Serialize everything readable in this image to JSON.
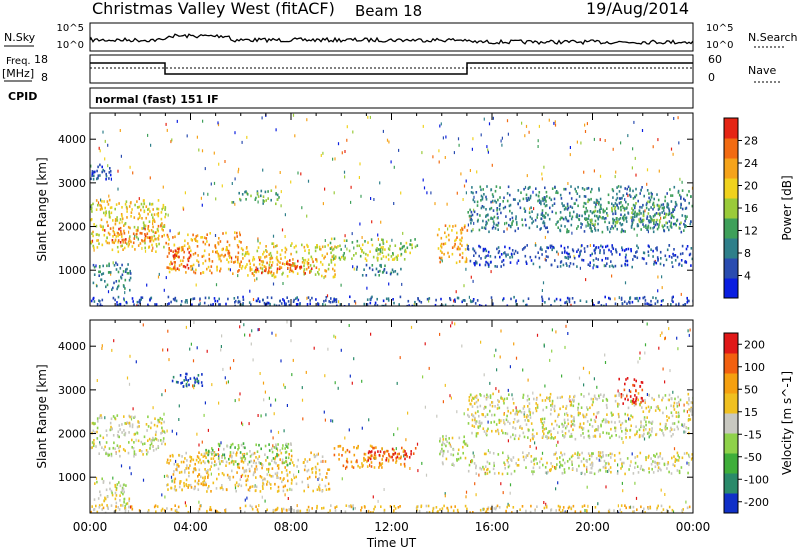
{
  "header": {
    "title": "Christmas Valley West (fitACF)",
    "beam": "Beam 18",
    "date": "19/Aug/2014"
  },
  "strip": {
    "nsky_label": "N.Sky",
    "nsky_ticks": [
      "10^5",
      "10^0"
    ],
    "nsearch_label": "N.Search",
    "nsearch_ticks": [
      "10^5",
      "10^0"
    ],
    "freq_label": "Freq.",
    "freq_unit": "[MHz]",
    "freq_ticks": [
      "18",
      "8"
    ],
    "nave_label": "Nave",
    "nave_ticks": [
      "60",
      "0"
    ],
    "cpid_label": "CPID",
    "cpid_value": "normal (fast) 151 IF"
  },
  "chart_data": [
    {
      "type": "heatmap",
      "title": "",
      "ylabel": "Slant Range [km]",
      "xlabel": "",
      "ylim": [
        180,
        4600
      ],
      "yticks": [
        "1000",
        "2000",
        "3000",
        "4000"
      ],
      "colorbar": {
        "label": "Power [dB]",
        "ticks": [
          "4",
          "8",
          "12",
          "16",
          "20",
          "24",
          "28"
        ],
        "colors": [
          "#0a1ee0",
          "#2a4cb0",
          "#2f7f8a",
          "#3fa05a",
          "#9acb3a",
          "#f0d21e",
          "#f5a31a",
          "#f26b12",
          "#e52515"
        ]
      },
      "regions": [
        {
          "t0": 0.0,
          "t1": 3.0,
          "r0": 1450,
          "r1": 2650,
          "level": 5
        },
        {
          "t0": 0.5,
          "t1": 2.9,
          "r0": 1650,
          "r1": 2050,
          "level": 7
        },
        {
          "t0": 0.1,
          "t1": 1.6,
          "r0": 550,
          "r1": 1200,
          "level": 2
        },
        {
          "t0": 0.0,
          "t1": 0.8,
          "r0": 3100,
          "r1": 3450,
          "level": 1
        },
        {
          "t0": 3.0,
          "t1": 6.0,
          "r0": 950,
          "r1": 1900,
          "level": 6
        },
        {
          "t0": 3.0,
          "t1": 4.0,
          "r0": 1050,
          "r1": 1550,
          "level": 8
        },
        {
          "t0": 6.0,
          "t1": 9.8,
          "r0": 850,
          "r1": 1650,
          "level": 5
        },
        {
          "t0": 6.3,
          "t1": 9.0,
          "r0": 950,
          "r1": 1300,
          "level": 7
        },
        {
          "t0": 5.5,
          "t1": 7.5,
          "r0": 2550,
          "r1": 2850,
          "level": 3
        },
        {
          "t0": 9.5,
          "t1": 13.0,
          "r0": 1250,
          "r1": 1750,
          "level": 4
        },
        {
          "t0": 10.5,
          "t1": 12.5,
          "r0": 900,
          "r1": 1150,
          "level": 2
        },
        {
          "t0": 13.8,
          "t1": 15.0,
          "r0": 1200,
          "r1": 2050,
          "level": 6
        },
        {
          "t0": 15.0,
          "t1": 24.0,
          "r0": 1900,
          "r1": 2950,
          "level": 2
        },
        {
          "t0": 19.5,
          "t1": 23.5,
          "r0": 2000,
          "r1": 2600,
          "level": 3
        },
        {
          "t0": 15.0,
          "t1": 24.0,
          "r0": 1100,
          "r1": 1600,
          "level": 1
        },
        {
          "t0": 0.0,
          "t1": 24.0,
          "r0": 200,
          "r1": 420,
          "level": 1
        }
      ]
    },
    {
      "type": "heatmap",
      "title": "",
      "ylabel": "Slant Range [km]",
      "xlabel": "Time UT",
      "ylim": [
        180,
        4600
      ],
      "yticks": [
        "1000",
        "2000",
        "3000",
        "4000"
      ],
      "xticks": [
        "00:00",
        "04:00",
        "08:00",
        "12:00",
        "16:00",
        "20:00",
        "00:00"
      ],
      "colorbar": {
        "label": "Velocity [m s^-1]",
        "ticks": [
          "200",
          "100",
          "50",
          "15",
          "-15",
          "-50",
          "-100",
          "-200"
        ],
        "colors": [
          "#1030c8",
          "#2a8a6a",
          "#3fae3a",
          "#8fd24a",
          "#c8c8c0",
          "#f0c020",
          "#f5a010",
          "#f26010",
          "#e01818"
        ]
      },
      "regions": [
        {
          "t0": 0.0,
          "t1": 3.0,
          "r0": 1500,
          "r1": 2450,
          "level": 4
        },
        {
          "t0": 0.1,
          "t1": 1.6,
          "r0": 300,
          "r1": 1000,
          "level": 4
        },
        {
          "t0": 3.0,
          "t1": 9.5,
          "r0": 700,
          "r1": 1600,
          "level": 5
        },
        {
          "t0": 4.5,
          "t1": 8.0,
          "r0": 1300,
          "r1": 1800,
          "level": 3
        },
        {
          "t0": 9.5,
          "t1": 12.5,
          "r0": 1250,
          "r1": 1750,
          "level": 6
        },
        {
          "t0": 11.0,
          "t1": 13.0,
          "r0": 1400,
          "r1": 1700,
          "level": 8
        },
        {
          "t0": 13.8,
          "t1": 15.0,
          "r0": 1300,
          "r1": 2000,
          "level": 4
        },
        {
          "t0": 15.0,
          "t1": 24.0,
          "r0": 1900,
          "r1": 2950,
          "level": 4
        },
        {
          "t0": 15.0,
          "t1": 24.0,
          "r0": 1100,
          "r1": 1600,
          "level": 4
        },
        {
          "t0": 3.2,
          "t1": 4.5,
          "r0": 3100,
          "r1": 3400,
          "level": 0
        },
        {
          "t0": 21.0,
          "t1": 22.0,
          "r0": 2700,
          "r1": 3300,
          "level": 8
        },
        {
          "t0": 0.0,
          "t1": 24.0,
          "r0": 200,
          "r1": 380,
          "level": 5
        }
      ]
    }
  ]
}
